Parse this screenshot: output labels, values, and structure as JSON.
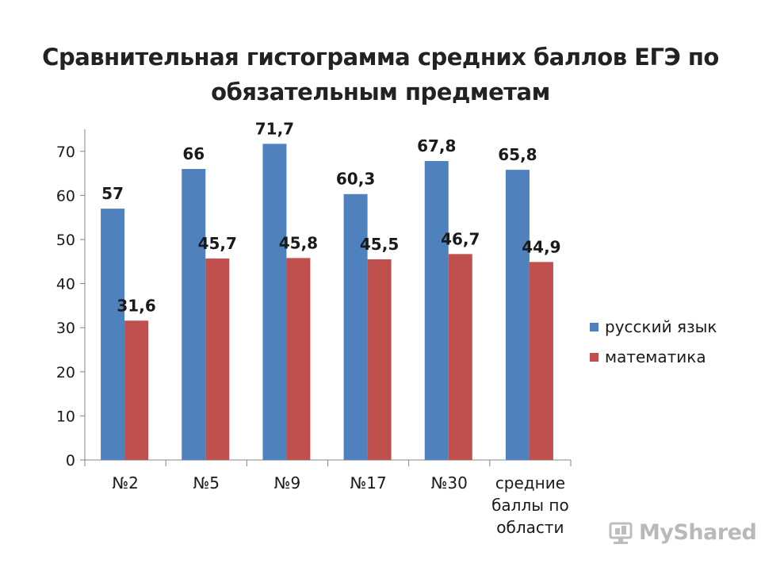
{
  "chart_data": {
    "type": "bar",
    "title": "Сравнительная гистограмма средних баллов ЕГЭ по обязательным предметам",
    "categories": [
      "№2",
      "№5",
      "№9",
      "№17",
      "№30",
      "средние баллы по области"
    ],
    "series": [
      {
        "name": "русский язык",
        "color": "#4F81BD",
        "values": [
          57,
          66,
          71.7,
          60.3,
          67.8,
          65.8
        ],
        "labels": [
          "57",
          "66",
          "71,7",
          "60,3",
          "67,8",
          "65,8"
        ]
      },
      {
        "name": "математика",
        "color": "#C0504D",
        "values": [
          31.6,
          45.7,
          45.8,
          45.5,
          46.7,
          44.9
        ],
        "labels": [
          "31,6",
          "45,7",
          "45,8",
          "45,5",
          "46,7",
          "44,9"
        ]
      }
    ],
    "xlabel": "",
    "ylabel": "",
    "ylim": [
      0,
      70
    ],
    "yticks": [
      0,
      10,
      20,
      30,
      40,
      50,
      60,
      70
    ],
    "grid": false,
    "legend_position": "right"
  },
  "watermark": {
    "text": "MyShared",
    "icon": "myshared-logo-icon"
  }
}
